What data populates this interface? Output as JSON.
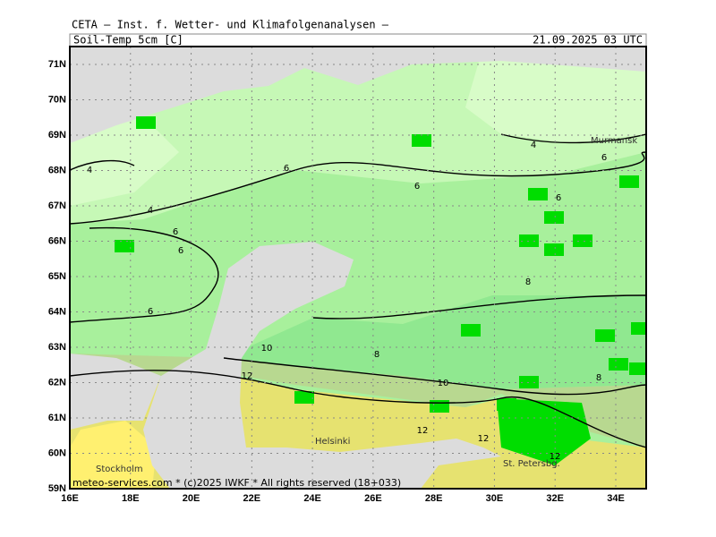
{
  "header": {
    "title": "CETA — Inst. f. Wetter- und Klimafolgenanalysen —",
    "parameter": "Soil-Temp_5cm_[C]",
    "valid_time": "21.09.2025 03 UTC"
  },
  "map": {
    "lat_labels": [
      "71N",
      "70N",
      "69N",
      "68N",
      "67N",
      "66N",
      "65N",
      "64N",
      "63N",
      "62N",
      "61N",
      "60N",
      "59N"
    ],
    "lon_labels": [
      "16E",
      "18E",
      "20E",
      "22E",
      "24E",
      "26E",
      "28E",
      "30E",
      "32E",
      "34E"
    ],
    "contour_labels": [
      4,
      4,
      4,
      6,
      6,
      6,
      6,
      6,
      6,
      6,
      8,
      8,
      8,
      10,
      10,
      12,
      12,
      12,
      12
    ],
    "cities": [
      "Murmansk",
      "Helsinki",
      "St. Petersbg.",
      "Stockholm"
    ],
    "credit": "meteo-services.com * (c)2025 IWKF * All rights reserved (18+033)"
  }
}
